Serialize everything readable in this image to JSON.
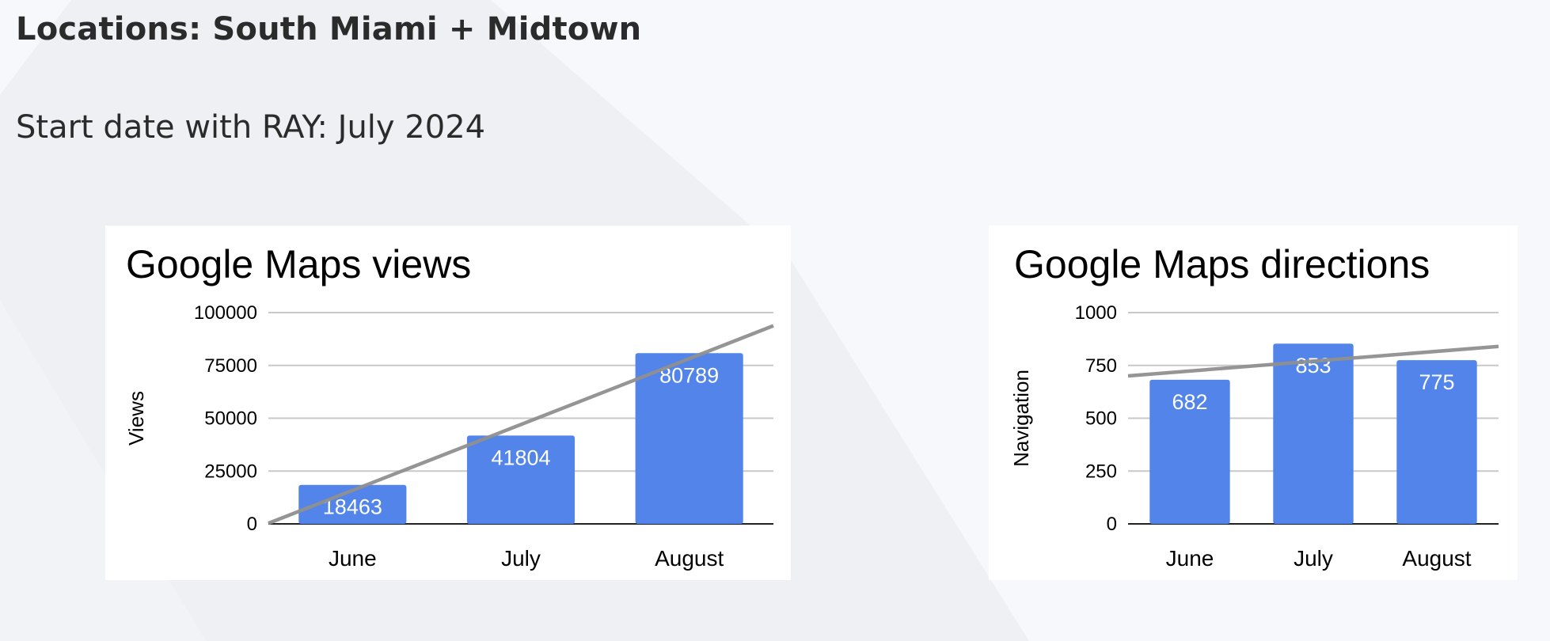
{
  "page": {
    "heading": "Locations: South Miami + Midtown",
    "subheading": "Start date with RAY: July 2024"
  },
  "colors": {
    "bar": "#5284ea",
    "trendline": "#8f8f8f",
    "gridline": "#c8c8c8",
    "axis": "#222222",
    "card_background": "#ffffff",
    "page_background": "#f6f8fc"
  },
  "chart_data": [
    {
      "type": "bar",
      "title": "Google Maps views",
      "ylabel": "Views",
      "xlabel": "",
      "categories": [
        "June",
        "July",
        "August"
      ],
      "series": [
        {
          "values": [
            18463,
            41804,
            80789
          ],
          "data_labels": [
            "18463",
            "41804",
            "80789"
          ]
        }
      ],
      "trendline": {
        "type": "linear"
      },
      "ylim": [
        0,
        100000
      ],
      "yticks": [
        0,
        25000,
        50000,
        75000,
        100000
      ],
      "ytick_labels": [
        "0",
        "25000",
        "50000",
        "75000",
        "100000"
      ],
      "grid": true,
      "legend": "none"
    },
    {
      "type": "bar",
      "title": "Google Maps directions",
      "ylabel": "Navigation",
      "xlabel": "",
      "categories": [
        "June",
        "July",
        "August"
      ],
      "series": [
        {
          "values": [
            682,
            853,
            775
          ],
          "data_labels": [
            "682",
            "853",
            "775"
          ]
        }
      ],
      "trendline": {
        "type": "linear"
      },
      "ylim": [
        0,
        1000
      ],
      "yticks": [
        0,
        250,
        500,
        750,
        1000
      ],
      "ytick_labels": [
        "0",
        "250",
        "500",
        "750",
        "1000"
      ],
      "grid": true,
      "legend": "none"
    }
  ]
}
